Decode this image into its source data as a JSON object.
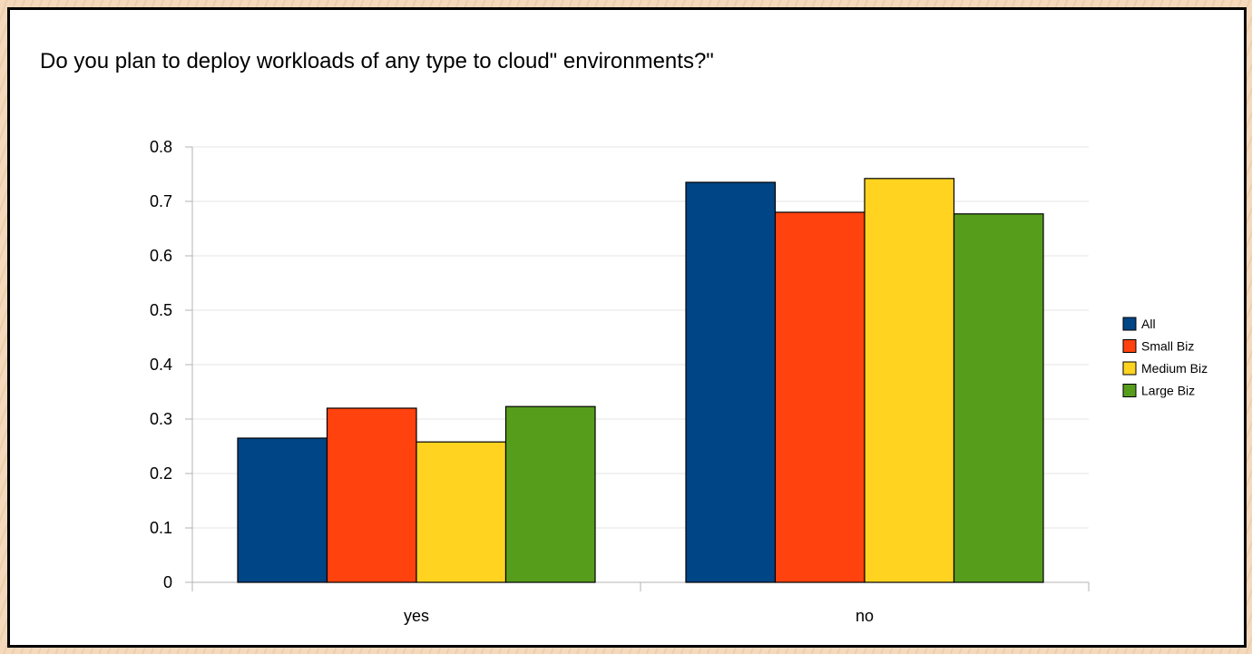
{
  "chart_data": {
    "type": "bar",
    "title": "Do you plan to deploy workloads of any type to cloud\" environments?\"",
    "categories": [
      "yes",
      "no"
    ],
    "series": [
      {
        "name": "All",
        "color": "#004586",
        "values": [
          0.265,
          0.735
        ]
      },
      {
        "name": "Small Biz",
        "color": "#ff420e",
        "values": [
          0.32,
          0.68
        ]
      },
      {
        "name": "Medium Biz",
        "color": "#ffd320",
        "values": [
          0.258,
          0.742
        ]
      },
      {
        "name": "Large Biz",
        "color": "#579d1c",
        "values": [
          0.323,
          0.677
        ]
      }
    ],
    "ylim": [
      0,
      0.8
    ],
    "yticks": [
      "0",
      "0.1",
      "0.2",
      "0.3",
      "0.4",
      "0.5",
      "0.6",
      "0.7",
      "0.8"
    ],
    "grid": true,
    "legend": "right",
    "xlabel": "",
    "ylabel": ""
  }
}
